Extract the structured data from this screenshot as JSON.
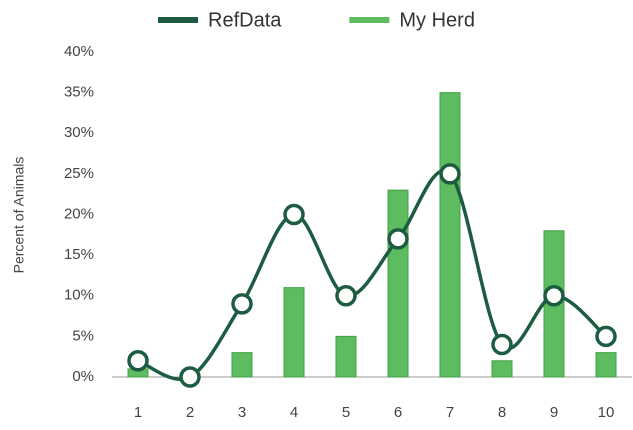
{
  "chart_data": {
    "type": "bar",
    "ylabel": "Percent of Animals",
    "categories": [
      "1",
      "2",
      "3",
      "4",
      "5",
      "6",
      "7",
      "8",
      "9",
      "10"
    ],
    "series": [
      {
        "name": "RefData",
        "type": "line",
        "color": "#1d5c40",
        "values": [
          2,
          0,
          9,
          20,
          10,
          17,
          25,
          4,
          10,
          5
        ]
      },
      {
        "name": "My Herd",
        "type": "bar",
        "color": "#5cbc5f",
        "values": [
          1,
          0,
          3,
          11,
          5,
          23,
          35,
          2,
          18,
          3
        ]
      }
    ],
    "ylim": [
      0,
      40
    ],
    "yticks": [
      {
        "value": 0,
        "label": "0%"
      },
      {
        "value": 5,
        "label": "5%"
      },
      {
        "value": 10,
        "label": "10%"
      },
      {
        "value": 15,
        "label": "15%"
      },
      {
        "value": 20,
        "label": "20%"
      },
      {
        "value": 25,
        "label": "25%"
      },
      {
        "value": 30,
        "label": "30%"
      },
      {
        "value": 35,
        "label": "35%"
      },
      {
        "value": 40,
        "label": "40%"
      }
    ],
    "grid": false,
    "legend": "top"
  }
}
